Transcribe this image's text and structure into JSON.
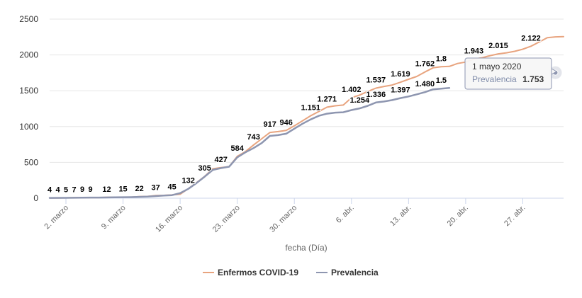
{
  "chart_data": {
    "type": "line",
    "title": "",
    "xlabel": "fecha (Día)",
    "ylabel": "",
    "ylim": [
      0,
      2500
    ],
    "yticks": [
      "0",
      "500",
      "1000",
      "1500",
      "2000",
      "2500"
    ],
    "xtick_labels": [
      "2. marzo",
      "9. marzo",
      "16. marzo",
      "23. marzo",
      "30. marzo",
      "6. abr.",
      "13. abr.",
      "20. abr.",
      "27. abr."
    ],
    "grid": true,
    "legend_placement": "bottom-center",
    "x_start": "2020-02-29",
    "x_end": "2020-05-02",
    "series": [
      {
        "name": "Enfermos COVID-19",
        "color": "#e8a47f",
        "values": [
          {
            "x": "2020-02-29",
            "y": 4
          },
          {
            "x": "2020-03-01",
            "y": 4
          },
          {
            "x": "2020-03-02",
            "y": 5
          },
          {
            "x": "2020-03-03",
            "y": 7
          },
          {
            "x": "2020-03-04",
            "y": 9
          },
          {
            "x": "2020-03-05",
            "y": 9
          },
          {
            "x": "2020-03-06",
            "y": 9
          },
          {
            "x": "2020-03-07",
            "y": 12
          },
          {
            "x": "2020-03-08",
            "y": 12
          },
          {
            "x": "2020-03-09",
            "y": 15
          },
          {
            "x": "2020-03-10",
            "y": 15
          },
          {
            "x": "2020-03-11",
            "y": 22
          },
          {
            "x": "2020-03-12",
            "y": 25
          },
          {
            "x": "2020-03-13",
            "y": 37
          },
          {
            "x": "2020-03-14",
            "y": 40
          },
          {
            "x": "2020-03-15",
            "y": 45
          },
          {
            "x": "2020-03-16",
            "y": 55
          },
          {
            "x": "2020-03-17",
            "y": 132
          },
          {
            "x": "2020-03-18",
            "y": 215
          },
          {
            "x": "2020-03-19",
            "y": 305
          },
          {
            "x": "2020-03-20",
            "y": 410
          },
          {
            "x": "2020-03-21",
            "y": 427
          },
          {
            "x": "2020-03-22",
            "y": 440
          },
          {
            "x": "2020-03-23",
            "y": 584
          },
          {
            "x": "2020-03-24",
            "y": 650
          },
          {
            "x": "2020-03-25",
            "y": 743
          },
          {
            "x": "2020-03-26",
            "y": 830
          },
          {
            "x": "2020-03-27",
            "y": 917
          },
          {
            "x": "2020-03-28",
            "y": 930
          },
          {
            "x": "2020-03-29",
            "y": 946
          },
          {
            "x": "2020-03-30",
            "y": 1010
          },
          {
            "x": "2020-03-31",
            "y": 1080
          },
          {
            "x": "2020-04-01",
            "y": 1151
          },
          {
            "x": "2020-04-02",
            "y": 1210
          },
          {
            "x": "2020-04-03",
            "y": 1271
          },
          {
            "x": "2020-04-04",
            "y": 1290
          },
          {
            "x": "2020-04-05",
            "y": 1300
          },
          {
            "x": "2020-04-06",
            "y": 1402
          },
          {
            "x": "2020-04-07",
            "y": 1440
          },
          {
            "x": "2020-04-08",
            "y": 1490
          },
          {
            "x": "2020-04-09",
            "y": 1537
          },
          {
            "x": "2020-04-10",
            "y": 1560
          },
          {
            "x": "2020-04-11",
            "y": 1580
          },
          {
            "x": "2020-04-12",
            "y": 1619
          },
          {
            "x": "2020-04-13",
            "y": 1660
          },
          {
            "x": "2020-04-14",
            "y": 1700
          },
          {
            "x": "2020-04-15",
            "y": 1762
          },
          {
            "x": "2020-04-16",
            "y": 1820
          },
          {
            "x": "2020-04-17",
            "y": 1835
          },
          {
            "x": "2020-04-18",
            "y": 1840
          },
          {
            "x": "2020-04-19",
            "y": 1880
          },
          {
            "x": "2020-04-20",
            "y": 1900
          },
          {
            "x": "2020-04-21",
            "y": 1943
          },
          {
            "x": "2020-04-22",
            "y": 1960
          },
          {
            "x": "2020-04-23",
            "y": 1990
          },
          {
            "x": "2020-04-24",
            "y": 2015
          },
          {
            "x": "2020-04-25",
            "y": 2030
          },
          {
            "x": "2020-04-26",
            "y": 2050
          },
          {
            "x": "2020-04-27",
            "y": 2080
          },
          {
            "x": "2020-04-28",
            "y": 2122
          },
          {
            "x": "2020-04-29",
            "y": 2180
          },
          {
            "x": "2020-04-30",
            "y": 2240
          },
          {
            "x": "2020-05-01",
            "y": 2252
          },
          {
            "x": "2020-05-02",
            "y": 2255
          }
        ],
        "labels": [
          {
            "x": "2020-02-29",
            "text": "4"
          },
          {
            "x": "2020-03-01",
            "text": "4"
          },
          {
            "x": "2020-03-02",
            "text": "5"
          },
          {
            "x": "2020-03-03",
            "text": "7"
          },
          {
            "x": "2020-03-04",
            "text": "9"
          },
          {
            "x": "2020-03-05",
            "text": "9"
          },
          {
            "x": "2020-03-07",
            "text": "12"
          },
          {
            "x": "2020-03-09",
            "text": "15"
          },
          {
            "x": "2020-03-11",
            "text": "22"
          },
          {
            "x": "2020-03-13",
            "text": "37"
          },
          {
            "x": "2020-03-15",
            "text": "45"
          },
          {
            "x": "2020-03-17",
            "text": "132"
          },
          {
            "x": "2020-03-19",
            "text": "305"
          },
          {
            "x": "2020-03-21",
            "text": "427"
          },
          {
            "x": "2020-03-23",
            "text": "584"
          },
          {
            "x": "2020-03-25",
            "text": "743"
          },
          {
            "x": "2020-03-27",
            "text": "917"
          },
          {
            "x": "2020-03-29",
            "text": "946"
          },
          {
            "x": "2020-04-01",
            "text": "1.151"
          },
          {
            "x": "2020-04-03",
            "text": "1.271"
          },
          {
            "x": "2020-04-06",
            "text": "1.402"
          },
          {
            "x": "2020-04-09",
            "text": "1.537"
          },
          {
            "x": "2020-04-12",
            "text": "1.619"
          },
          {
            "x": "2020-04-15",
            "text": "1.762"
          },
          {
            "x": "2020-04-17",
            "text": "1.8"
          },
          {
            "x": "2020-04-21",
            "text": "1.943"
          },
          {
            "x": "2020-04-24",
            "text": "2.015"
          },
          {
            "x": "2020-04-28",
            "text": "2.122"
          }
        ]
      },
      {
        "name": "Prevalencia",
        "color": "#8e96b0",
        "values": [
          {
            "x": "2020-02-29",
            "y": 4
          },
          {
            "x": "2020-03-02",
            "y": 5
          },
          {
            "x": "2020-03-04",
            "y": 8
          },
          {
            "x": "2020-03-06",
            "y": 9
          },
          {
            "x": "2020-03-08",
            "y": 12
          },
          {
            "x": "2020-03-10",
            "y": 15
          },
          {
            "x": "2020-03-12",
            "y": 22
          },
          {
            "x": "2020-03-13",
            "y": 30
          },
          {
            "x": "2020-03-14",
            "y": 37
          },
          {
            "x": "2020-03-15",
            "y": 42
          },
          {
            "x": "2020-03-16",
            "y": 70
          },
          {
            "x": "2020-03-17",
            "y": 130
          },
          {
            "x": "2020-03-18",
            "y": 210
          },
          {
            "x": "2020-03-19",
            "y": 300
          },
          {
            "x": "2020-03-20",
            "y": 395
          },
          {
            "x": "2020-03-21",
            "y": 420
          },
          {
            "x": "2020-03-22",
            "y": 440
          },
          {
            "x": "2020-03-23",
            "y": 570
          },
          {
            "x": "2020-03-24",
            "y": 640
          },
          {
            "x": "2020-03-25",
            "y": 700
          },
          {
            "x": "2020-03-26",
            "y": 770
          },
          {
            "x": "2020-03-27",
            "y": 870
          },
          {
            "x": "2020-03-28",
            "y": 880
          },
          {
            "x": "2020-03-29",
            "y": 900
          },
          {
            "x": "2020-03-30",
            "y": 970
          },
          {
            "x": "2020-03-31",
            "y": 1040
          },
          {
            "x": "2020-04-01",
            "y": 1100
          },
          {
            "x": "2020-04-02",
            "y": 1150
          },
          {
            "x": "2020-04-03",
            "y": 1180
          },
          {
            "x": "2020-04-04",
            "y": 1195
          },
          {
            "x": "2020-04-05",
            "y": 1200
          },
          {
            "x": "2020-04-06",
            "y": 1230
          },
          {
            "x": "2020-04-07",
            "y": 1254
          },
          {
            "x": "2020-04-08",
            "y": 1290
          },
          {
            "x": "2020-04-09",
            "y": 1336
          },
          {
            "x": "2020-04-10",
            "y": 1350
          },
          {
            "x": "2020-04-11",
            "y": 1370
          },
          {
            "x": "2020-04-12",
            "y": 1397
          },
          {
            "x": "2020-04-13",
            "y": 1420
          },
          {
            "x": "2020-04-14",
            "y": 1450
          },
          {
            "x": "2020-04-15",
            "y": 1480
          },
          {
            "x": "2020-04-16",
            "y": 1520
          },
          {
            "x": "2020-04-17",
            "y": 1530
          },
          {
            "x": "2020-04-18",
            "y": 1540
          }
        ],
        "labels": [
          {
            "x": "2020-04-07",
            "text": "1.254"
          },
          {
            "x": "2020-04-09",
            "text": "1.336"
          },
          {
            "x": "2020-04-12",
            "text": "1.397"
          },
          {
            "x": "2020-04-15",
            "text": "1.480"
          },
          {
            "x": "2020-04-17",
            "text": "1.5"
          }
        ]
      }
    ],
    "tooltip": {
      "date": "1 mayo 2020",
      "series_name": "Prevalencia",
      "value": "1.753",
      "x": "2020-05-01",
      "y": 1753
    }
  }
}
